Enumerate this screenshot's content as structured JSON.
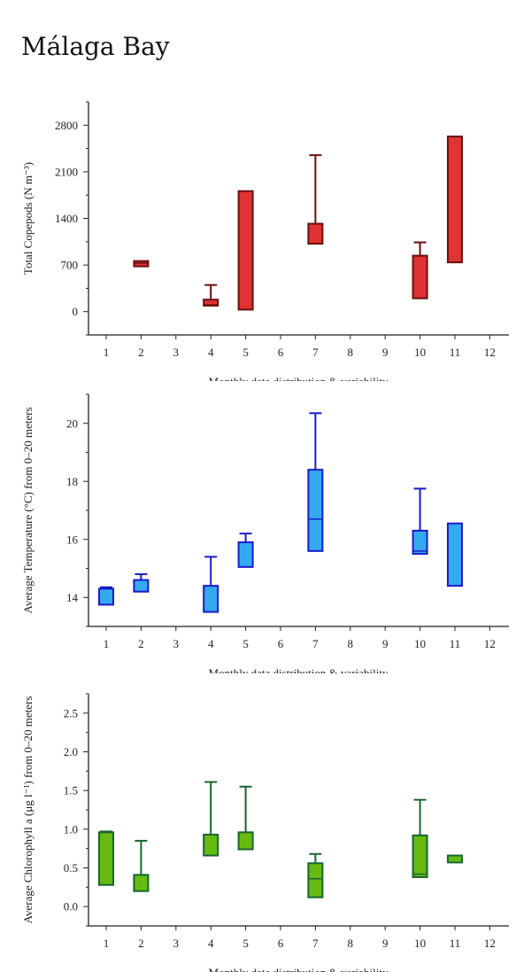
{
  "page": {
    "title": "Málaga Bay"
  },
  "chart_data": [
    {
      "type": "box",
      "ylabel": "Total Copepods (N m⁻³)",
      "xlabel": "Monthly data distribution & variability",
      "categories": [
        "1",
        "2",
        "3",
        "4",
        "5",
        "6",
        "7",
        "8",
        "9",
        "10",
        "11",
        "12"
      ],
      "yticks": [
        0,
        700,
        1400,
        2100,
        2800
      ],
      "ylim": [
        -350,
        3150
      ],
      "colors": {
        "fill": "#e03333",
        "stroke": "#6b0f0f"
      },
      "boxes": [
        {
          "x": 2,
          "q1": 680,
          "median": 730,
          "q3": 760,
          "min": 680,
          "max": 760
        },
        {
          "x": 4,
          "q1": 90,
          "median": 100,
          "q3": 180,
          "min": 90,
          "max": 400
        },
        {
          "x": 5,
          "q1": 30,
          "median": 30,
          "q3": 1810,
          "min": 30,
          "max": 1810
        },
        {
          "x": 7,
          "q1": 1020,
          "median": 1020,
          "q3": 1320,
          "min": 1020,
          "max": 2350
        },
        {
          "x": 10,
          "q1": 200,
          "median": 200,
          "q3": 840,
          "min": 200,
          "max": 1040
        },
        {
          "x": 11,
          "q1": 740,
          "median": 740,
          "q3": 2630,
          "min": 740,
          "max": 2630
        }
      ]
    },
    {
      "type": "box",
      "ylabel": "Average Temperature (°C) from 0–20 meters",
      "xlabel": "Monthly data distribution & variability",
      "categories": [
        "1",
        "2",
        "3",
        "4",
        "5",
        "6",
        "7",
        "8",
        "9",
        "10",
        "11",
        "12"
      ],
      "yticks": [
        14,
        16,
        18,
        20
      ],
      "ylim": [
        13.0,
        21.0
      ],
      "colors": {
        "fill": "#33aaee",
        "stroke": "#1a1acc"
      },
      "boxes": [
        {
          "x": 1,
          "q1": 13.75,
          "median": 13.75,
          "q3": 14.3,
          "min": 13.75,
          "max": 14.35
        },
        {
          "x": 2,
          "q1": 14.2,
          "median": 14.2,
          "q3": 14.6,
          "min": 14.2,
          "max": 14.8
        },
        {
          "x": 4,
          "q1": 13.5,
          "median": 13.5,
          "q3": 14.4,
          "min": 13.5,
          "max": 15.4
        },
        {
          "x": 5,
          "q1": 15.05,
          "median": 15.05,
          "q3": 15.9,
          "min": 15.05,
          "max": 16.2
        },
        {
          "x": 7,
          "q1": 15.6,
          "median": 16.7,
          "q3": 18.4,
          "min": 15.6,
          "max": 20.35
        },
        {
          "x": 10,
          "q1": 15.5,
          "median": 15.6,
          "q3": 16.3,
          "min": 15.5,
          "max": 17.75
        },
        {
          "x": 11,
          "q1": 14.4,
          "median": 14.4,
          "q3": 16.55,
          "min": 14.4,
          "max": 16.55
        }
      ]
    },
    {
      "type": "box",
      "ylabel": "Average Chlorophyll a (μg l⁻¹) from 0–20 meters",
      "xlabel": "Monthly data distribution & variability",
      "categories": [
        "1",
        "2",
        "3",
        "4",
        "5",
        "6",
        "7",
        "8",
        "9",
        "10",
        "11",
        "12"
      ],
      "yticks": [
        0.0,
        0.5,
        1.0,
        1.5,
        2.0,
        2.5
      ],
      "ytick_labels": [
        "0.0",
        "0.5",
        "1.0",
        "1.5",
        "2.0",
        "2.5"
      ],
      "ylim": [
        -0.25,
        2.75
      ],
      "colors": {
        "fill": "#66bb11",
        "stroke": "#166630"
      },
      "boxes": [
        {
          "x": 1,
          "q1": 0.28,
          "median": 0.28,
          "q3": 0.96,
          "min": 0.28,
          "max": 0.97
        },
        {
          "x": 2,
          "q1": 0.2,
          "median": 0.2,
          "q3": 0.41,
          "min": 0.2,
          "max": 0.85
        },
        {
          "x": 4,
          "q1": 0.66,
          "median": 0.66,
          "q3": 0.93,
          "min": 0.66,
          "max": 1.61
        },
        {
          "x": 5,
          "q1": 0.74,
          "median": 0.74,
          "q3": 0.96,
          "min": 0.74,
          "max": 1.55
        },
        {
          "x": 7,
          "q1": 0.12,
          "median": 0.36,
          "q3": 0.56,
          "min": 0.12,
          "max": 0.68
        },
        {
          "x": 10,
          "q1": 0.38,
          "median": 0.42,
          "q3": 0.92,
          "min": 0.38,
          "max": 1.38
        },
        {
          "x": 11,
          "q1": 0.57,
          "median": 0.57,
          "q3": 0.66,
          "min": 0.57,
          "max": 0.66
        }
      ]
    }
  ]
}
